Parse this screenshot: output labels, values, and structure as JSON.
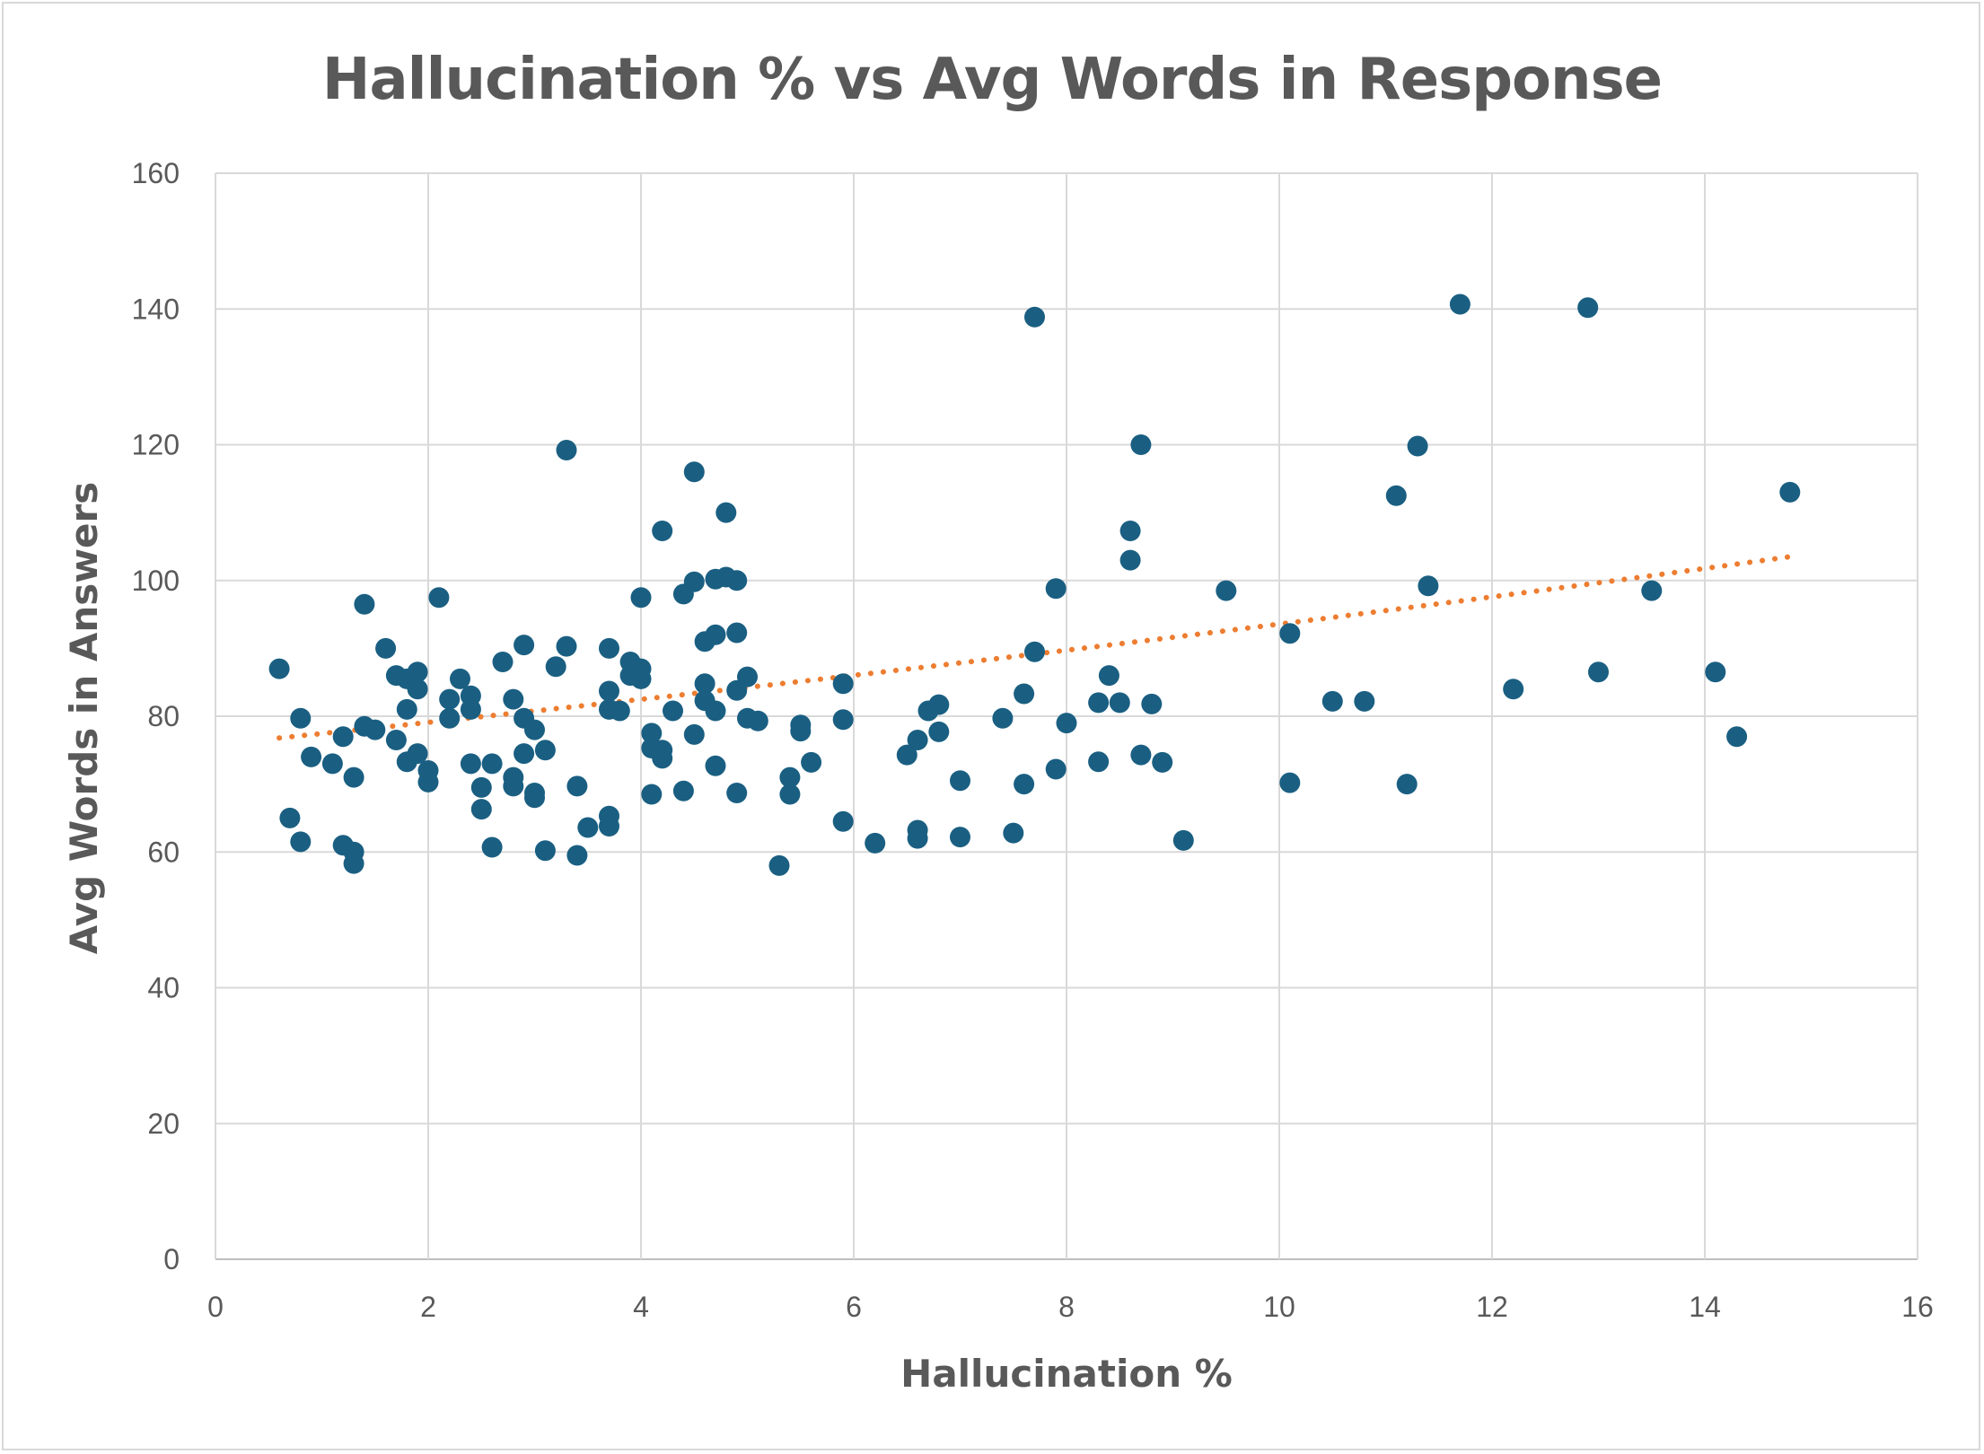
{
  "chart_data": {
    "type": "scatter",
    "title": "Hallucination % vs Avg Words in Response",
    "xlabel": "Hallucination %",
    "ylabel": "Avg Words in Answers",
    "xlim": [
      0,
      16
    ],
    "ylim": [
      0,
      160
    ],
    "x_ticks": [
      "0",
      "2",
      "4",
      "6",
      "8",
      "10",
      "12",
      "14",
      "16"
    ],
    "y_ticks": [
      "0",
      "20",
      "40",
      "60",
      "80",
      "100",
      "120",
      "140",
      "160"
    ],
    "grid": true,
    "legend": "none",
    "colors": {
      "points": "#1a5f82",
      "trendline": "#ed7d31",
      "grid": "#d9d9d9",
      "text": "#595959"
    },
    "trendline": {
      "type": "exponential",
      "x_start": 0.6,
      "y_start": 76.8,
      "x_end": 14.8,
      "y_end": 103.5
    },
    "points": [
      [
        0.6,
        87
      ],
      [
        0.7,
        65
      ],
      [
        0.8,
        79.7
      ],
      [
        0.8,
        61.5
      ],
      [
        0.9,
        74
      ],
      [
        1.1,
        73
      ],
      [
        1.2,
        77
      ],
      [
        1.2,
        61
      ],
      [
        1.3,
        71
      ],
      [
        1.3,
        60
      ],
      [
        1.3,
        58.3
      ],
      [
        1.4,
        96.5
      ],
      [
        1.4,
        78.5
      ],
      [
        1.5,
        78
      ],
      [
        1.6,
        90
      ],
      [
        1.7,
        86
      ],
      [
        1.7,
        76.5
      ],
      [
        1.8,
        85.5
      ],
      [
        1.8,
        81
      ],
      [
        1.8,
        73.3
      ],
      [
        1.9,
        86.5
      ],
      [
        1.9,
        84
      ],
      [
        1.9,
        74.5
      ],
      [
        2.0,
        72
      ],
      [
        2.0,
        70.3
      ],
      [
        2.1,
        97.5
      ],
      [
        2.2,
        82.5
      ],
      [
        2.2,
        79.7
      ],
      [
        2.3,
        85.5
      ],
      [
        2.4,
        83
      ],
      [
        2.4,
        81
      ],
      [
        2.4,
        73
      ],
      [
        2.5,
        69.5
      ],
      [
        2.5,
        66.3
      ],
      [
        2.6,
        73
      ],
      [
        2.6,
        60.7
      ],
      [
        2.7,
        88
      ],
      [
        2.8,
        82.5
      ],
      [
        2.8,
        71
      ],
      [
        2.8,
        69.7
      ],
      [
        2.9,
        90.5
      ],
      [
        2.9,
        79.7
      ],
      [
        2.9,
        74.5
      ],
      [
        3.0,
        78
      ],
      [
        3.0,
        68.7
      ],
      [
        3.0,
        68
      ],
      [
        3.1,
        75
      ],
      [
        3.1,
        60.2
      ],
      [
        3.2,
        87.3
      ],
      [
        3.3,
        119.2
      ],
      [
        3.3,
        90.3
      ],
      [
        3.4,
        69.7
      ],
      [
        3.4,
        59.5
      ],
      [
        3.5,
        63.6
      ],
      [
        3.7,
        90
      ],
      [
        3.7,
        83.7
      ],
      [
        3.7,
        81
      ],
      [
        3.7,
        65.3
      ],
      [
        3.7,
        63.8
      ],
      [
        3.8,
        80.8
      ],
      [
        3.9,
        88
      ],
      [
        3.9,
        86
      ],
      [
        4.0,
        87
      ],
      [
        4.0,
        85.5
      ],
      [
        4.0,
        97.5
      ],
      [
        4.1,
        77.5
      ],
      [
        4.1,
        75.3
      ],
      [
        4.1,
        68.5
      ],
      [
        4.2,
        107.3
      ],
      [
        4.2,
        75
      ],
      [
        4.2,
        73.8
      ],
      [
        4.3,
        80.8
      ],
      [
        4.4,
        98
      ],
      [
        4.4,
        69
      ],
      [
        4.5,
        116
      ],
      [
        4.5,
        99.8
      ],
      [
        4.5,
        77.3
      ],
      [
        4.6,
        91
      ],
      [
        4.6,
        84.8
      ],
      [
        4.6,
        82.3
      ],
      [
        4.7,
        100.2
      ],
      [
        4.7,
        92
      ],
      [
        4.7,
        80.8
      ],
      [
        4.7,
        72.7
      ],
      [
        4.8,
        110
      ],
      [
        4.8,
        100.5
      ],
      [
        4.9,
        100
      ],
      [
        4.9,
        92.3
      ],
      [
        4.9,
        83.8
      ],
      [
        4.9,
        68.7
      ],
      [
        5.0,
        85.8
      ],
      [
        5.0,
        79.7
      ],
      [
        5.1,
        79.3
      ],
      [
        5.3,
        58
      ],
      [
        5.4,
        71
      ],
      [
        5.4,
        68.5
      ],
      [
        5.5,
        78.7
      ],
      [
        5.5,
        77.8
      ],
      [
        5.6,
        73.2
      ],
      [
        5.9,
        84.8
      ],
      [
        5.9,
        79.5
      ],
      [
        5.9,
        64.5
      ],
      [
        6.2,
        61.3
      ],
      [
        6.5,
        74.3
      ],
      [
        6.6,
        76.5
      ],
      [
        6.6,
        63.2
      ],
      [
        6.6,
        62
      ],
      [
        6.7,
        80.8
      ],
      [
        6.8,
        81.7
      ],
      [
        6.8,
        77.7
      ],
      [
        7.0,
        70.5
      ],
      [
        7.0,
        62.2
      ],
      [
        7.4,
        79.7
      ],
      [
        7.5,
        62.8
      ],
      [
        7.6,
        83.3
      ],
      [
        7.6,
        70
      ],
      [
        7.7,
        138.8
      ],
      [
        7.7,
        89.5
      ],
      [
        7.9,
        98.8
      ],
      [
        7.9,
        72.2
      ],
      [
        8.0,
        79
      ],
      [
        8.3,
        73.3
      ],
      [
        8.3,
        82
      ],
      [
        8.4,
        86
      ],
      [
        8.5,
        82
      ],
      [
        8.6,
        107.3
      ],
      [
        8.6,
        103
      ],
      [
        8.7,
        120
      ],
      [
        8.7,
        74.3
      ],
      [
        8.8,
        81.8
      ],
      [
        8.9,
        73.2
      ],
      [
        9.1,
        61.7
      ],
      [
        9.5,
        98.5
      ],
      [
        10.1,
        92.2
      ],
      [
        10.1,
        70.2
      ],
      [
        10.5,
        82.2
      ],
      [
        10.8,
        82.2
      ],
      [
        11.1,
        112.5
      ],
      [
        11.2,
        70
      ],
      [
        11.3,
        119.8
      ],
      [
        11.4,
        99.2
      ],
      [
        11.7,
        140.7
      ],
      [
        12.2,
        84
      ],
      [
        12.9,
        140.2
      ],
      [
        13.0,
        86.5
      ],
      [
        13.5,
        98.5
      ],
      [
        14.1,
        86.5
      ],
      [
        14.3,
        77
      ],
      [
        14.8,
        113
      ]
    ]
  }
}
